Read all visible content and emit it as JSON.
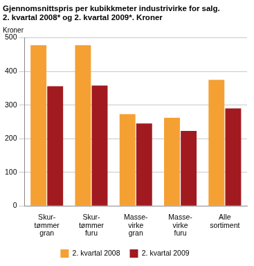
{
  "chart_data": {
    "type": "bar",
    "title": "Gjennomsnittspris per kubikkmeter industrivirke for salg.\n2. kvartal 2008* og 2. kvartal 2009*. Kroner",
    "ylabel": "Kroner",
    "categories": [
      "Skur-\ntømmer\ngran",
      "Skur-\ntømmer\nfuru",
      "Masse-\nvirke\ngran",
      "Masse-\nvirke\nfuru",
      "Alle\nsortiment"
    ],
    "series": [
      {
        "name": "2. kvartal 2008",
        "color": "#f5a033",
        "values": [
          478,
          478,
          273,
          262,
          375
        ]
      },
      {
        "name": "2. kvartal 2009",
        "color": "#a01a20",
        "values": [
          356,
          358,
          245,
          223,
          290
        ]
      }
    ],
    "ylim": [
      0,
      500
    ],
    "yticks": [
      0,
      100,
      200,
      300,
      400,
      500
    ],
    "grid": true,
    "legend": "bottom"
  }
}
